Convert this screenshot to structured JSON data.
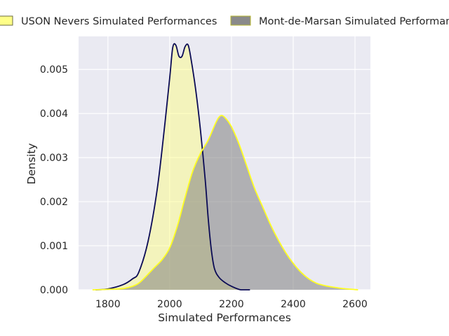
{
  "chart_data": {
    "type": "area",
    "title": "",
    "xlabel": "Simulated Performances",
    "ylabel": "Density",
    "xlim": [
      1705,
      2650
    ],
    "ylim": [
      0,
      0.00575
    ],
    "x_ticks": [
      1800,
      2000,
      2200,
      2400,
      2600
    ],
    "y_ticks": [
      0.0,
      0.001,
      0.002,
      0.003,
      0.004,
      0.005
    ],
    "x_tick_labels": [
      "1800",
      "2000",
      "2200",
      "2400",
      "2600"
    ],
    "y_tick_labels": [
      "0.000",
      "0.001",
      "0.002",
      "0.003",
      "0.004",
      "0.005"
    ],
    "grid": true,
    "background_color": "#eaeaf2",
    "legend_position": "top",
    "series": [
      {
        "name": "USON Nevers Simulated Performances",
        "fill_color": "#ffff7a",
        "fill_opacity": 0.45,
        "line_color": "#0b0b55",
        "legend_fill": "#ffff88",
        "legend_edge": "#6b6b40",
        "points": [
          [
            1760,
            0.0
          ],
          [
            1800,
            2e-05
          ],
          [
            1850,
            0.00012
          ],
          [
            1880,
            0.00025
          ],
          [
            1900,
            0.0004
          ],
          [
            1930,
            0.0011
          ],
          [
            1960,
            0.0023
          ],
          [
            1985,
            0.0038
          ],
          [
            2000,
            0.0048
          ],
          [
            2010,
            0.0055
          ],
          [
            2020,
            0.00555
          ],
          [
            2030,
            0.0053
          ],
          [
            2040,
            0.0053
          ],
          [
            2050,
            0.00552
          ],
          [
            2060,
            0.00555
          ],
          [
            2070,
            0.0052
          ],
          [
            2085,
            0.0045
          ],
          [
            2100,
            0.0036
          ],
          [
            2115,
            0.0025
          ],
          [
            2125,
            0.0016
          ],
          [
            2135,
            0.0009
          ],
          [
            2145,
            0.00048
          ],
          [
            2160,
            0.00028
          ],
          [
            2180,
            0.00016
          ],
          [
            2200,
            8e-05
          ],
          [
            2230,
            0.0
          ],
          [
            2260,
            0.0
          ]
        ]
      },
      {
        "name": "Mont-de-Marsan Simulated Performances",
        "fill_color": "#808080",
        "fill_opacity": 0.55,
        "line_color": "#ffff22",
        "legend_fill": "#8a8a8a",
        "legend_edge": "#b5b52e",
        "points": [
          [
            1750,
            0.0
          ],
          [
            1800,
            1e-05
          ],
          [
            1850,
            3e-05
          ],
          [
            1880,
            8e-05
          ],
          [
            1900,
            0.00015
          ],
          [
            1920,
            0.00028
          ],
          [
            1950,
            0.0005
          ],
          [
            1975,
            0.00068
          ],
          [
            2000,
            0.00095
          ],
          [
            2025,
            0.00145
          ],
          [
            2050,
            0.0021
          ],
          [
            2075,
            0.0027
          ],
          [
            2100,
            0.0031
          ],
          [
            2125,
            0.0034
          ],
          [
            2150,
            0.0038
          ],
          [
            2165,
            0.00395
          ],
          [
            2180,
            0.0039
          ],
          [
            2200,
            0.0037
          ],
          [
            2225,
            0.0033
          ],
          [
            2250,
            0.0028
          ],
          [
            2275,
            0.0023
          ],
          [
            2300,
            0.0019
          ],
          [
            2325,
            0.0015
          ],
          [
            2350,
            0.00115
          ],
          [
            2375,
            0.00085
          ],
          [
            2400,
            0.0006
          ],
          [
            2425,
            0.0004
          ],
          [
            2450,
            0.00025
          ],
          [
            2475,
            0.00015
          ],
          [
            2500,
            0.0001
          ],
          [
            2530,
            6e-05
          ],
          [
            2560,
            3e-05
          ],
          [
            2610,
            0.0
          ]
        ]
      }
    ]
  }
}
